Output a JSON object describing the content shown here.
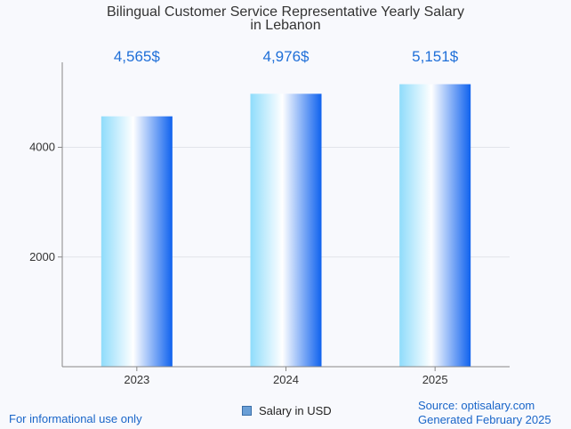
{
  "chart_data": {
    "type": "bar",
    "title_lines": [
      "Bilingual Customer Service Representative Yearly Salary",
      "in Lebanon"
    ],
    "categories": [
      "2023",
      "2024",
      "2025"
    ],
    "series": [
      {
        "name": "Salary in USD",
        "values": [
          4565,
          4976,
          5151
        ]
      }
    ],
    "data_labels": [
      "4,565$",
      "4,976$",
      "5,151$"
    ],
    "y_ticks": [
      2000,
      4000
    ],
    "ylim": [
      0,
      5550
    ],
    "grid": true,
    "legend_position": "bottom",
    "xlabel": "",
    "ylabel": ""
  },
  "colors": {
    "bar_left": "#8fdcfb",
    "bar_mid": "#ffffff",
    "bar_right": "#0f62ee",
    "data_label": "#1f6fd8",
    "footer": "#1a66c9"
  },
  "footer": {
    "note": "For informational use only",
    "source": "Source: optisalary.com",
    "generated": "Generated February 2025"
  },
  "legend": {
    "label": "Salary in USD"
  }
}
